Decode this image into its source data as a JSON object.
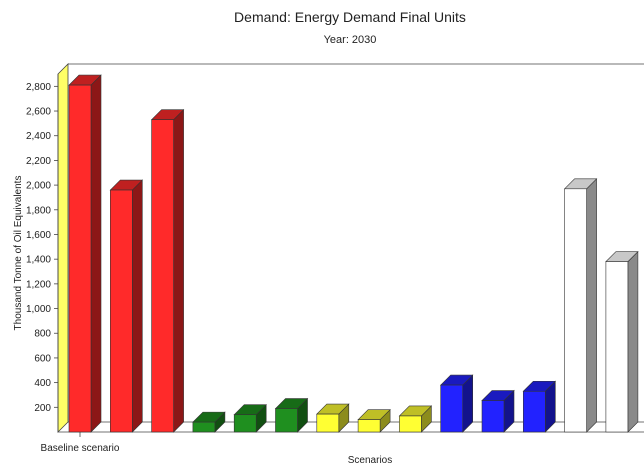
{
  "chart_data": {
    "type": "bar",
    "title": "Demand: Energy Demand Final Units",
    "subtitle": "Year: 2030",
    "xlabel": "Scenarios",
    "ylabel": "Thousand Tonne of Oil Equivalents",
    "categories": [
      "Baseline scenario"
    ],
    "ylim": [
      0,
      2900
    ],
    "yticks": [
      200,
      400,
      600,
      800,
      1000,
      1200,
      1400,
      1600,
      1800,
      2000,
      2200,
      2400,
      2600,
      2800
    ],
    "ytick_labels": [
      "200",
      "400",
      "600",
      "800",
      "1,000",
      "1,200",
      "1,400",
      "1,600",
      "1,800",
      "2,000",
      "2,200",
      "2,400",
      "2,600",
      "2,800"
    ],
    "grid": false,
    "series": [
      {
        "color": "#ff2a2a",
        "values": [
          2810
        ]
      },
      {
        "color": "#ff2a2a",
        "values": [
          1960
        ]
      },
      {
        "color": "#ff2a2a",
        "values": [
          2530
        ]
      },
      {
        "color": "#1f8f1f",
        "values": [
          80
        ]
      },
      {
        "color": "#1f8f1f",
        "values": [
          140
        ]
      },
      {
        "color": "#1f8f1f",
        "values": [
          190
        ]
      },
      {
        "color": "#ffff33",
        "values": [
          145
        ]
      },
      {
        "color": "#ffff33",
        "values": [
          100
        ]
      },
      {
        "color": "#ffff33",
        "values": [
          130
        ]
      },
      {
        "color": "#2222ff",
        "values": [
          380
        ]
      },
      {
        "color": "#2222ff",
        "values": [
          255
        ]
      },
      {
        "color": "#2222ff",
        "values": [
          330
        ]
      },
      {
        "color": "#ffffff",
        "values": [
          1970
        ]
      },
      {
        "color": "#ffffff",
        "values": [
          1380
        ]
      }
    ]
  }
}
